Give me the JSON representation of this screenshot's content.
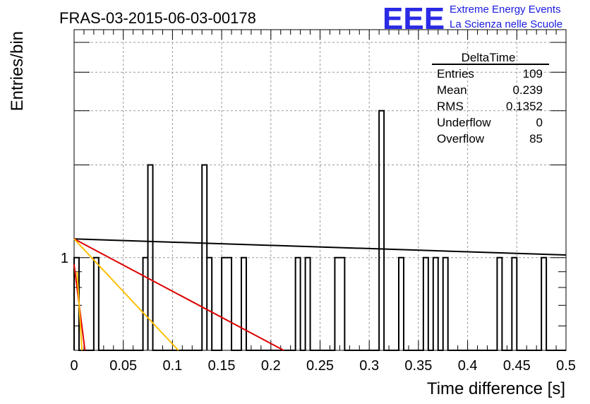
{
  "chart_data": {
    "type": "histogram",
    "title": "FRAS-03-2015-06-03-00178",
    "xlabel": "Time difference [s]",
    "ylabel": "Entries/bin",
    "xlim": [
      0,
      0.5
    ],
    "ylim_log": [
      0.5,
      5.5
    ],
    "log_y": true,
    "grid": true,
    "bin_width": 0.005,
    "x_ticks": [
      "0",
      "0.05",
      "0.1",
      "0.15",
      "0.2",
      "0.25",
      "0.3",
      "0.35",
      "0.4",
      "0.45",
      "0.5"
    ],
    "y_ticks": [
      "1"
    ],
    "bins": [
      {
        "x0": 0.0,
        "x1": 0.005,
        "y": 1
      },
      {
        "x0": 0.02,
        "x1": 0.025,
        "y": 1
      },
      {
        "x0": 0.07,
        "x1": 0.075,
        "y": 1
      },
      {
        "x0": 0.075,
        "x1": 0.08,
        "y": 2
      },
      {
        "x0": 0.13,
        "x1": 0.135,
        "y": 2
      },
      {
        "x0": 0.135,
        "x1": 0.14,
        "y": 1
      },
      {
        "x0": 0.15,
        "x1": 0.16,
        "y": 1
      },
      {
        "x0": 0.17,
        "x1": 0.175,
        "y": 1
      },
      {
        "x0": 0.225,
        "x1": 0.23,
        "y": 1
      },
      {
        "x0": 0.235,
        "x1": 0.24,
        "y": 1
      },
      {
        "x0": 0.265,
        "x1": 0.275,
        "y": 1
      },
      {
        "x0": 0.31,
        "x1": 0.315,
        "y": 3
      },
      {
        "x0": 0.33,
        "x1": 0.335,
        "y": 1
      },
      {
        "x0": 0.355,
        "x1": 0.36,
        "y": 1
      },
      {
        "x0": 0.365,
        "x1": 0.37,
        "y": 1
      },
      {
        "x0": 0.375,
        "x1": 0.38,
        "y": 1
      },
      {
        "x0": 0.43,
        "x1": 0.435,
        "y": 1
      },
      {
        "x0": 0.445,
        "x1": 0.45,
        "y": 1
      },
      {
        "x0": 0.475,
        "x1": 0.48,
        "y": 1
      }
    ],
    "fit_lines": [
      {
        "color": "#000000",
        "points": [
          [
            0.0,
            1.15
          ],
          [
            0.5,
            1.02
          ]
        ]
      },
      {
        "color": "#dd0000",
        "points": [
          [
            0.0,
            1.15
          ],
          [
            0.213,
            0.5
          ]
        ]
      },
      {
        "color": "#ffbf00",
        "points": [
          [
            0.0,
            1.15
          ],
          [
            0.106,
            0.5
          ]
        ]
      },
      {
        "color": "#dd0000",
        "points": [
          [
            0.0,
            0.95
          ],
          [
            0.011,
            0.5
          ]
        ]
      },
      {
        "color": "#ffbf00",
        "points": [
          [
            0.003,
            0.9
          ],
          [
            0.008,
            0.5
          ]
        ]
      }
    ],
    "stats_box": {
      "title": "DeltaTime",
      "rows": [
        {
          "label": "Entries",
          "value": "109"
        },
        {
          "label": "Mean",
          "value": "0.239"
        },
        {
          "label": "RMS",
          "value": "0.1352"
        },
        {
          "label": "Underflow",
          "value": "0"
        },
        {
          "label": "Overflow",
          "value": "85"
        }
      ]
    },
    "logo": {
      "big": "EEE",
      "line1": "Extreme Energy Events",
      "line2": "La Scienza nelle Scuole"
    }
  }
}
